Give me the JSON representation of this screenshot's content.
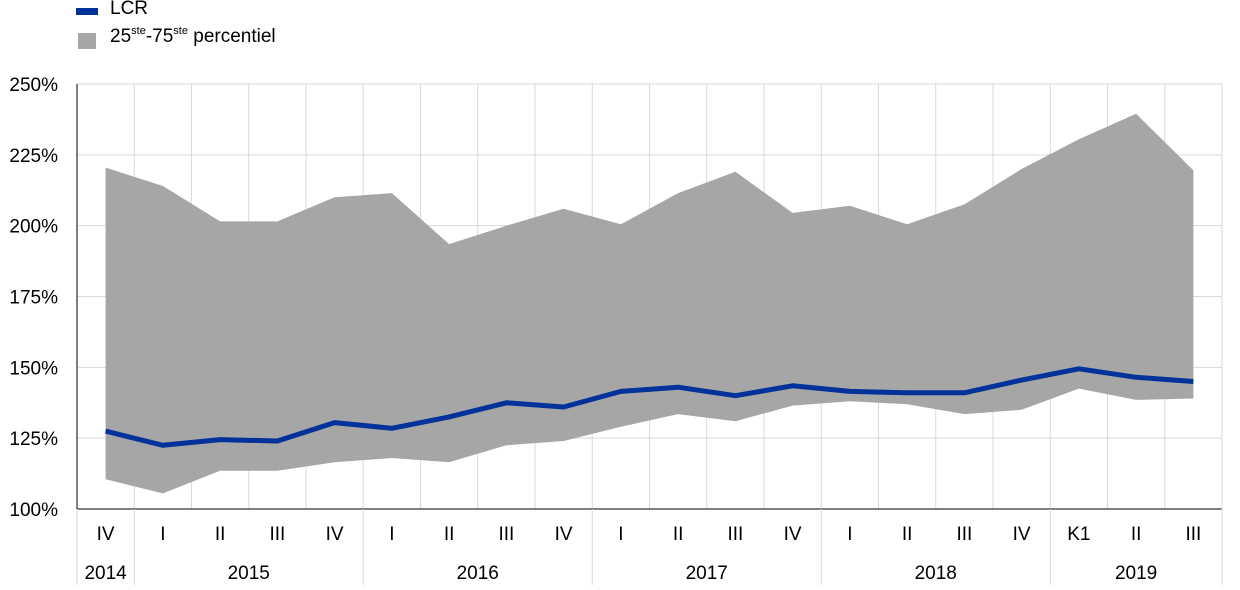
{
  "legend": {
    "line_label": "LCR",
    "band_label_a": "25",
    "band_sup_a": "ste",
    "band_label_b": "-75",
    "band_sup_b": "ste",
    "band_label_c": " percentiel"
  },
  "colors": {
    "line": "#003299",
    "band": "#a6a6a6",
    "grid": "#d9d9d9",
    "axis": "#000000"
  },
  "chart_data": {
    "type": "area",
    "y_tick_labels": [
      "100%",
      "125%",
      "150%",
      "175%",
      "200%",
      "225%",
      "250%"
    ],
    "ylim": [
      100,
      250
    ],
    "grid": true,
    "legend_position": "top-left",
    "categories": [
      "IV",
      "I",
      "II",
      "III",
      "IV",
      "I",
      "II",
      "III",
      "IV",
      "I",
      "II",
      "III",
      "IV",
      "I",
      "II",
      "III",
      "IV",
      "K1",
      "II",
      "III"
    ],
    "year_groups": [
      {
        "label": "2014",
        "span": 1
      },
      {
        "label": "2015",
        "span": 4
      },
      {
        "label": "2016",
        "span": 4
      },
      {
        "label": "2017",
        "span": 4
      },
      {
        "label": "2018",
        "span": 4
      },
      {
        "label": "2019",
        "span": 3
      }
    ],
    "series": [
      {
        "name": "LCR",
        "values": [
          127.5,
          122.5,
          124.5,
          124.0,
          130.5,
          128.5,
          132.5,
          137.5,
          136.0,
          141.5,
          143.0,
          140.0,
          143.5,
          141.5,
          141.0,
          141.0,
          145.5,
          149.5,
          146.5,
          145.0
        ]
      },
      {
        "name": "25ste-75ste percentiel",
        "lower": [
          110.5,
          105.5,
          113.5,
          113.5,
          116.5,
          118.0,
          116.5,
          122.5,
          124.0,
          129.0,
          133.5,
          131.0,
          136.5,
          138.0,
          137.0,
          133.5,
          135.0,
          142.5,
          138.5,
          139.0
        ],
        "upper": [
          220.5,
          214.0,
          201.5,
          201.5,
          210.0,
          211.5,
          193.5,
          200.0,
          206.0,
          200.5,
          211.5,
          219.0,
          204.5,
          207.0,
          200.5,
          207.5,
          220.0,
          230.5,
          239.5,
          219.5
        ]
      }
    ]
  }
}
